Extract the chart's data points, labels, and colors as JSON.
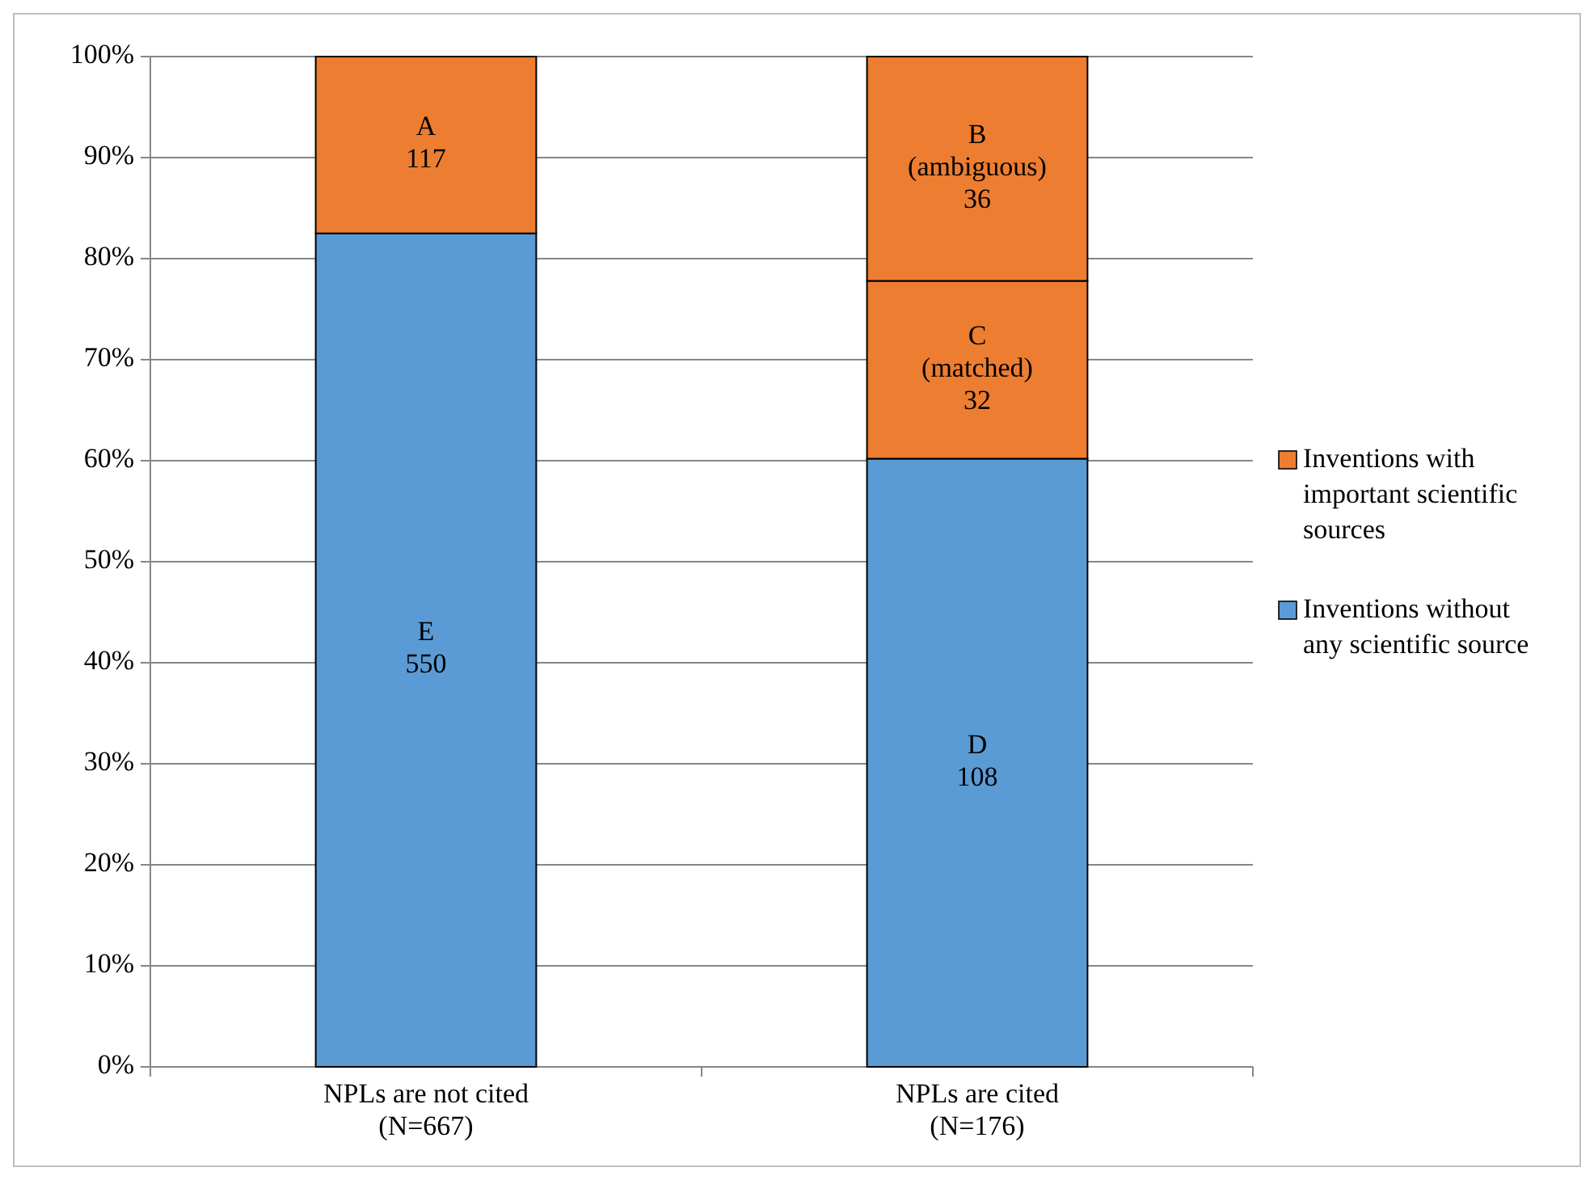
{
  "chart_data": {
    "type": "bar",
    "stacked": true,
    "categories": [
      "NPLs are not cited\n(N=667)",
      "NPLs are cited\n(N=176)"
    ],
    "series": [
      {
        "name": "Inventions without any scientific source",
        "color": "#5b9bd5",
        "values": [
          82.5,
          60.2
        ]
      },
      {
        "color": "#ed7d31",
        "values": [
          null,
          17.6
        ]
      },
      {
        "name": "Inventions with important scientific sources",
        "color": "#ed7d31",
        "values": [
          17.5,
          22.2
        ]
      }
    ],
    "annotations": [
      "E\n550",
      "D\n108",
      "C\n(matched)\n32",
      "A\n117",
      "B\n(ambiguous)\n36"
    ],
    "ylim": [
      0,
      100
    ],
    "yticks": [
      {
        "value": 0,
        "label": "0%"
      },
      {
        "value": 10,
        "label": "10%"
      },
      {
        "value": 20,
        "label": "20%"
      },
      {
        "value": 30,
        "label": "30%"
      },
      {
        "value": 40,
        "label": "40%"
      },
      {
        "value": 50,
        "label": "50%"
      },
      {
        "value": 60,
        "label": "60%"
      },
      {
        "value": 70,
        "label": "70%"
      },
      {
        "value": 80,
        "label": "80%"
      },
      {
        "value": 90,
        "label": "90%"
      },
      {
        "value": 100,
        "label": "100%"
      }
    ],
    "grid": "y",
    "legend": "right"
  }
}
